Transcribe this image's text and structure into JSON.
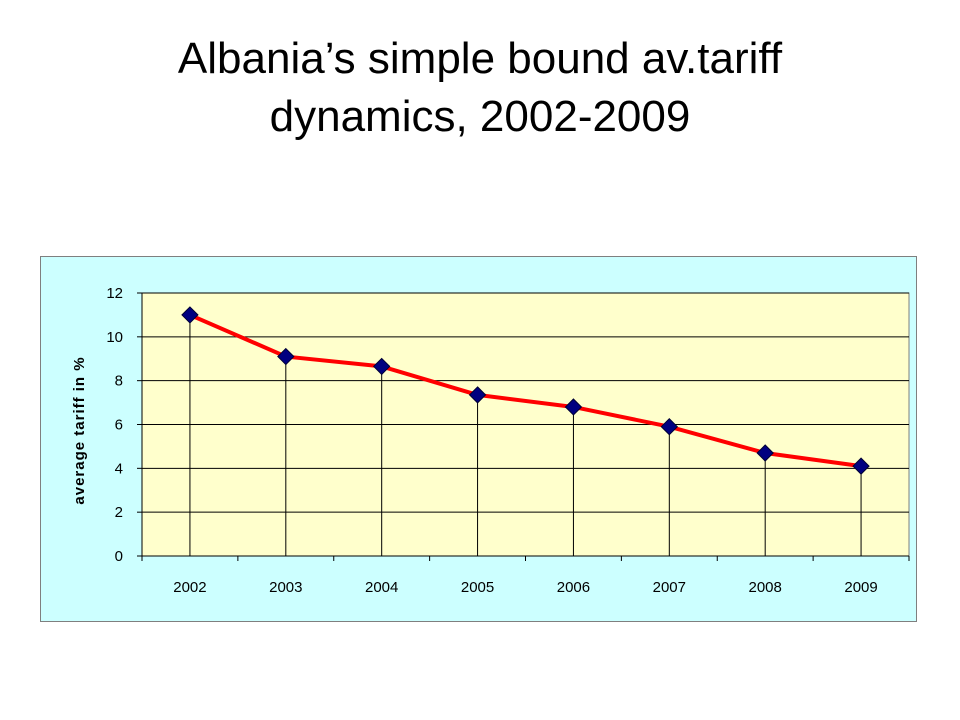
{
  "slide": {
    "title_line1": "Albania’s simple bound av.tariff",
    "title_line2": "dynamics, 2002-2009"
  },
  "chart_data": {
    "type": "line",
    "title": "",
    "xlabel": "",
    "ylabel": "average tariff in %",
    "categories": [
      "2002",
      "2003",
      "2004",
      "2005",
      "2006",
      "2007",
      "2008",
      "2009"
    ],
    "values": [
      11.0,
      9.1,
      8.65,
      7.35,
      6.8,
      5.9,
      4.7,
      4.1
    ],
    "ylim": [
      0,
      12
    ],
    "yticks": [
      0,
      2,
      4,
      6,
      8,
      10,
      12
    ],
    "grid": "horizontal",
    "drop_lines": true,
    "legend": "none",
    "colors": {
      "frame_background": "#ccffff",
      "plot_background": "#ffffcc",
      "line": "#ff0000",
      "marker": "#000080",
      "axis": "#000000"
    }
  }
}
